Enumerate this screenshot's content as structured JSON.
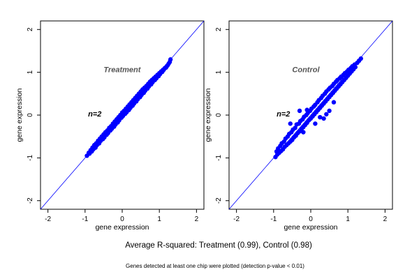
{
  "figure": {
    "caption": "Average R-squared: Treatment (0.99), Control (0.98)",
    "footnote": "Genes detected at least one chip were plotted (detection p-value < 0.01)"
  },
  "colors": {
    "points": "#0000ff",
    "diagonal": "#0000ff",
    "annotation": "#555555",
    "axis": "#000000"
  },
  "chart_data": [
    {
      "type": "scatter",
      "title": "",
      "panel_label": "Treatment",
      "annotation": "n=2",
      "xlabel": "gene expression",
      "ylabel": "gene expression",
      "xlim": [
        -2.2,
        2.2
      ],
      "ylim": [
        -2.2,
        2.2
      ],
      "xticks": [
        "-2",
        "-1",
        "0",
        "1",
        "2"
      ],
      "yticks": [
        "-2",
        "-1",
        "0",
        "1",
        "2"
      ],
      "reference_line": "y = x",
      "grid": false,
      "legend": "none",
      "r_squared": 0.99,
      "x": [
        -0.95,
        -0.9,
        -0.88,
        -0.85,
        -0.82,
        -0.8,
        -0.78,
        -0.75,
        -0.72,
        -0.7,
        -0.68,
        -0.65,
        -0.62,
        -0.6,
        -0.58,
        -0.55,
        -0.52,
        -0.5,
        -0.48,
        -0.45,
        -0.42,
        -0.4,
        -0.38,
        -0.35,
        -0.32,
        -0.3,
        -0.28,
        -0.25,
        -0.22,
        -0.2,
        -0.18,
        -0.15,
        -0.12,
        -0.1,
        -0.08,
        -0.05,
        -0.02,
        0.0,
        0.02,
        0.05,
        0.08,
        0.1,
        0.12,
        0.15,
        0.18,
        0.2,
        0.22,
        0.25,
        0.28,
        0.3,
        0.32,
        0.35,
        0.38,
        0.4,
        0.42,
        0.45,
        0.48,
        0.5,
        0.52,
        0.55,
        0.58,
        0.6,
        0.62,
        0.65,
        0.68,
        0.7,
        0.72,
        0.75,
        0.78,
        0.8,
        0.82,
        0.85,
        0.88,
        0.9,
        0.92,
        0.95,
        0.98,
        1.0,
        1.02,
        1.05,
        1.08,
        1.1,
        1.12,
        1.15,
        1.18,
        1.2,
        1.22,
        1.25,
        1.28,
        1.3
      ],
      "y": [
        -0.95,
        -0.88,
        -0.9,
        -0.82,
        -0.85,
        -0.76,
        -0.8,
        -0.7,
        -0.76,
        -0.66,
        -0.7,
        -0.6,
        -0.66,
        -0.55,
        -0.6,
        -0.5,
        -0.56,
        -0.45,
        -0.52,
        -0.4,
        -0.46,
        -0.36,
        -0.42,
        -0.3,
        -0.36,
        -0.26,
        -0.32,
        -0.2,
        -0.27,
        -0.15,
        -0.22,
        -0.1,
        -0.17,
        -0.05,
        -0.12,
        0.0,
        -0.06,
        0.06,
        -0.02,
        0.1,
        0.03,
        0.15,
        0.07,
        0.2,
        0.12,
        0.25,
        0.17,
        0.3,
        0.22,
        0.35,
        0.27,
        0.4,
        0.32,
        0.45,
        0.37,
        0.5,
        0.42,
        0.55,
        0.47,
        0.6,
        0.52,
        0.64,
        0.57,
        0.68,
        0.62,
        0.73,
        0.67,
        0.78,
        0.72,
        0.82,
        0.77,
        0.86,
        0.82,
        0.9,
        0.86,
        0.94,
        0.91,
        0.98,
        0.96,
        1.02,
        1.01,
        1.06,
        1.06,
        1.1,
        1.11,
        1.14,
        1.16,
        1.2,
        1.24,
        1.3
      ]
    },
    {
      "type": "scatter",
      "title": "",
      "panel_label": "Control",
      "annotation": "n=2",
      "xlabel": "gene expression",
      "ylabel": "gene expression",
      "xlim": [
        -2.2,
        2.2
      ],
      "ylim": [
        -2.2,
        2.2
      ],
      "xticks": [
        "-2",
        "-1",
        "0",
        "1",
        "2"
      ],
      "yticks": [
        "-2",
        "-1",
        "0",
        "1",
        "2"
      ],
      "reference_line": "y = x",
      "grid": false,
      "legend": "none",
      "r_squared": 0.98,
      "x": [
        -0.95,
        -0.92,
        -0.9,
        -0.88,
        -0.85,
        -0.82,
        -0.8,
        -0.78,
        -0.75,
        -0.72,
        -0.7,
        -0.68,
        -0.65,
        -0.62,
        -0.6,
        -0.58,
        -0.55,
        -0.52,
        -0.5,
        -0.48,
        -0.45,
        -0.42,
        -0.4,
        -0.38,
        -0.35,
        -0.32,
        -0.3,
        -0.28,
        -0.25,
        -0.22,
        -0.2,
        -0.18,
        -0.15,
        -0.12,
        -0.1,
        -0.08,
        -0.05,
        -0.02,
        0.0,
        0.02,
        0.05,
        0.08,
        0.1,
        0.12,
        0.15,
        0.18,
        0.2,
        0.22,
        0.25,
        0.28,
        0.3,
        0.32,
        0.35,
        0.38,
        0.4,
        0.42,
        0.45,
        0.48,
        0.5,
        0.52,
        0.55,
        0.58,
        0.6,
        0.62,
        0.65,
        0.68,
        0.7,
        0.72,
        0.75,
        0.78,
        0.8,
        0.82,
        0.85,
        0.88,
        0.9,
        0.92,
        0.95,
        0.98,
        1.0,
        1.02,
        1.05,
        1.08,
        1.1,
        1.12,
        1.15,
        1.18,
        1.2,
        1.25,
        1.3,
        1.35,
        -0.3,
        -0.1,
        0.12,
        0.25,
        0.35,
        0.42,
        0.5,
        0.62,
        -0.55,
        -0.2
      ],
      "y": [
        -0.98,
        -0.85,
        -0.92,
        -0.78,
        -0.88,
        -0.72,
        -0.84,
        -0.66,
        -0.8,
        -0.62,
        -0.74,
        -0.55,
        -0.7,
        -0.5,
        -0.66,
        -0.44,
        -0.62,
        -0.4,
        -0.58,
        -0.34,
        -0.52,
        -0.3,
        -0.48,
        -0.22,
        -0.42,
        -0.2,
        -0.38,
        -0.14,
        -0.33,
        -0.1,
        -0.28,
        -0.04,
        -0.23,
        0.0,
        -0.18,
        0.05,
        -0.12,
        0.1,
        -0.08,
        0.15,
        -0.03,
        0.2,
        0.02,
        0.24,
        0.07,
        0.3,
        0.12,
        0.35,
        0.17,
        0.4,
        0.22,
        0.45,
        0.27,
        0.5,
        0.32,
        0.55,
        0.37,
        0.6,
        0.42,
        0.64,
        0.47,
        0.68,
        0.52,
        0.73,
        0.57,
        0.78,
        0.62,
        0.82,
        0.67,
        0.86,
        0.72,
        0.9,
        0.77,
        0.94,
        0.82,
        0.98,
        0.87,
        1.02,
        0.92,
        1.06,
        0.97,
        1.1,
        1.02,
        1.14,
        1.07,
        1.18,
        1.12,
        1.22,
        1.27,
        1.32,
        0.1,
        0.12,
        -0.2,
        -0.05,
        -0.08,
        0.02,
        0.1,
        0.3,
        -0.2,
        -0.4
      ]
    }
  ]
}
